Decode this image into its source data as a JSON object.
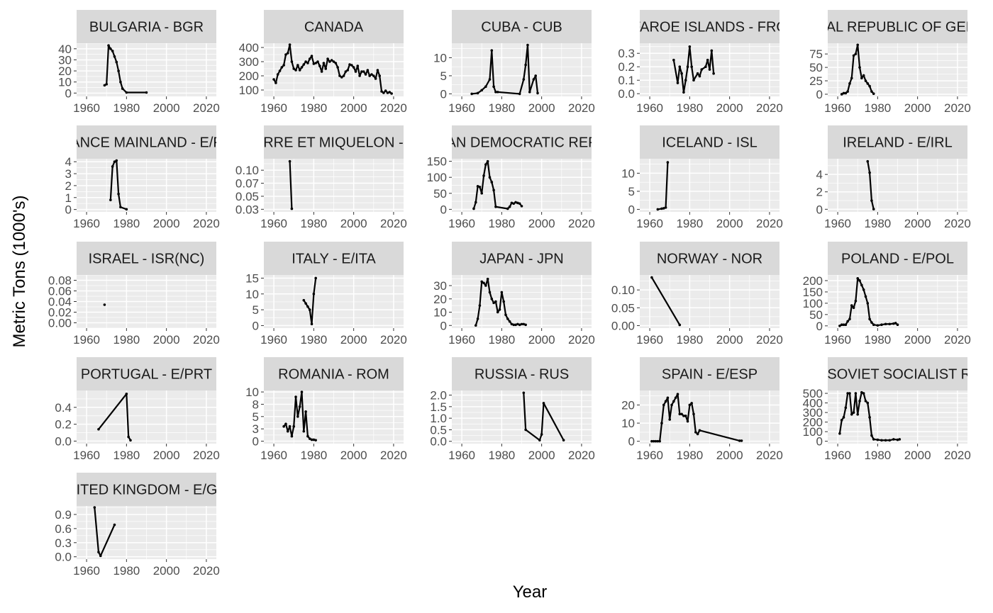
{
  "chart_data": {
    "type": "line",
    "layout": "facet_wrap",
    "xlabel": "Year",
    "ylabel": "Metric Tons (1000's)",
    "x_ticks": [
      1960,
      1980,
      2000,
      2020
    ],
    "xlim": [
      1955,
      2025
    ],
    "grid": true,
    "legend": "none",
    "colors": {
      "panel_bg": "#ebebeb",
      "strip_bg": "#d9d9d9",
      "grid": "#ffffff",
      "line": "#000000",
      "tick_text": "#4d4d4d",
      "strip_text": "#1a1a1a"
    },
    "panels": [
      {
        "title": "BULGARIA - BGR",
        "ylim": [
          -3,
          45
        ],
        "y_ticks": [
          0,
          10,
          20,
          30,
          40
        ],
        "x": [
          1969,
          1970,
          1971,
          1972,
          1973,
          1974,
          1975,
          1976,
          1977,
          1978,
          1980,
          1990
        ],
        "y": [
          7,
          8,
          43,
          40,
          38,
          33,
          28,
          20,
          10,
          4,
          0.5,
          0.5
        ]
      },
      {
        "title": "CANADA",
        "ylim": [
          55,
          430
        ],
        "y_ticks": [
          100,
          200,
          300,
          400
        ],
        "x": [
          1960,
          1961,
          1962,
          1963,
          1964,
          1965,
          1966,
          1967,
          1968,
          1969,
          1970,
          1971,
          1972,
          1973,
          1974,
          1975,
          1976,
          1977,
          1978,
          1979,
          1980,
          1981,
          1982,
          1983,
          1984,
          1985,
          1986,
          1987,
          1988,
          1989,
          1990,
          1991,
          1992,
          1993,
          1994,
          1995,
          1996,
          1997,
          1998,
          1999,
          2000,
          2001,
          2002,
          2003,
          2004,
          2005,
          2006,
          2007,
          2008,
          2009,
          2010,
          2011,
          2012,
          2013,
          2014,
          2015,
          2016,
          2017,
          2018,
          2019
        ],
        "y": [
          175,
          150,
          210,
          235,
          260,
          275,
          350,
          360,
          420,
          300,
          250,
          240,
          275,
          240,
          260,
          280,
          300,
          290,
          320,
          340,
          285,
          290,
          300,
          270,
          230,
          290,
          250,
          320,
          300,
          310,
          300,
          290,
          260,
          200,
          190,
          200,
          230,
          240,
          280,
          275,
          260,
          230,
          270,
          200,
          230,
          230,
          210,
          240,
          200,
          210,
          200,
          180,
          240,
          200,
          90,
          80,
          95,
          80,
          85,
          75
        ]
      },
      {
        "title": "CUBA - CUB",
        "ylim": [
          -0.7,
          14
        ],
        "y_ticks": [
          0,
          5,
          10
        ],
        "x": [
          1965,
          1968,
          1970,
          1972,
          1974,
          1975,
          1976,
          1977,
          1978,
          1989,
          1991,
          1992,
          1993,
          1994,
          1996,
          1997,
          1998
        ],
        "y": [
          0,
          0.2,
          1,
          2,
          4,
          12,
          2,
          0.5,
          0.5,
          0,
          4,
          8,
          13.5,
          0.5,
          4,
          5,
          0.2
        ]
      },
      {
        "title": "FAROE ISLANDS - FRO",
        "ylim": [
          -0.02,
          0.375
        ],
        "y_ticks": [
          0.0,
          0.1,
          0.2,
          0.3
        ],
        "x": [
          1972,
          1974,
          1975,
          1976,
          1977,
          1978,
          1979,
          1980,
          1981,
          1982,
          1984,
          1985,
          1986,
          1988,
          1989,
          1990,
          1991,
          1992
        ],
        "y": [
          0.25,
          0.08,
          0.2,
          0.15,
          0.01,
          0.1,
          0.2,
          0.35,
          0.2,
          0.1,
          0.15,
          0.13,
          0.18,
          0.2,
          0.25,
          0.18,
          0.32,
          0.15
        ]
      },
      {
        "title": "FEDERAL REPUBLIC OF GERMANY",
        "ylim": [
          -4,
          95
        ],
        "y_ticks": [
          0,
          25,
          50,
          75
        ],
        "x": [
          1962,
          1963,
          1964,
          1965,
          1966,
          1967,
          1968,
          1969,
          1970,
          1971,
          1972,
          1973,
          1974,
          1975,
          1976,
          1977,
          1978
        ],
        "y": [
          0,
          2,
          2,
          5,
          20,
          30,
          72,
          75,
          92,
          50,
          30,
          35,
          25,
          20,
          15,
          5,
          1
        ]
      },
      {
        "title": "FRANCE MAINLAND - E/FRA",
        "ylim": [
          -0.2,
          4.25
        ],
        "y_ticks": [
          0,
          1,
          2,
          3,
          4
        ],
        "x": [
          1972,
          1973,
          1974,
          1975,
          1976,
          1977,
          1980
        ],
        "y": [
          0.8,
          3.6,
          4.0,
          4.1,
          1.3,
          0.2,
          0.02
        ]
      },
      {
        "title": "ST. PIERRE ET MIQUELON - E/SPM",
        "ylim": [
          0.02,
          0.122
        ],
        "y_ticks": [
          0.025,
          0.05,
          0.075,
          0.1
        ],
        "x": [
          1968,
          1969
        ],
        "y": [
          0.117,
          0.026
        ]
      },
      {
        "title": "GERMAN DEMOCRATIC REPUBLIC",
        "ylim": [
          -8,
          158
        ],
        "y_ticks": [
          0,
          50,
          100,
          150
        ],
        "x": [
          1966,
          1967,
          1968,
          1969,
          1970,
          1971,
          1972,
          1973,
          1974,
          1975,
          1976,
          1977,
          1983,
          1984,
          1985,
          1986,
          1987,
          1988,
          1989,
          1990
        ],
        "y": [
          2,
          22,
          72,
          70,
          50,
          105,
          140,
          150,
          100,
          85,
          60,
          8,
          2,
          8,
          20,
          18,
          22,
          20,
          18,
          10
        ]
      },
      {
        "title": "ICELAND - ISL",
        "ylim": [
          -0.7,
          14
        ],
        "y_ticks": [
          0,
          5,
          10
        ],
        "x": [
          1964,
          1966,
          1967,
          1968,
          1969
        ],
        "y": [
          0,
          0.2,
          0.3,
          0.5,
          13
        ]
      },
      {
        "title": "IRELAND - E/IRL",
        "ylim": [
          -0.3,
          5.8
        ],
        "y_ticks": [
          0,
          2,
          4
        ],
        "x": [
          1975,
          1976,
          1977,
          1978
        ],
        "y": [
          5.5,
          4.2,
          1.0,
          0.02
        ]
      },
      {
        "title": "ISRAEL - ISR(NC)",
        "ylim": [
          -0.01,
          0.09
        ],
        "y_ticks": [
          0.0,
          0.02,
          0.04,
          0.06,
          0.08
        ],
        "x": [
          1969
        ],
        "y": [
          0.034
        ]
      },
      {
        "title": "ITALY - E/ITA",
        "ylim": [
          -0.8,
          16
        ],
        "y_ticks": [
          0,
          5,
          10,
          15
        ],
        "x": [
          1975,
          1976,
          1977,
          1978,
          1979,
          1980,
          1981
        ],
        "y": [
          8,
          7,
          6,
          5,
          0.5,
          10,
          15
        ]
      },
      {
        "title": "JAPAN - JPN",
        "ylim": [
          -2,
          38
        ],
        "y_ticks": [
          0,
          10,
          20,
          30
        ],
        "x": [
          1967,
          1968,
          1969,
          1970,
          1971,
          1972,
          1973,
          1974,
          1975,
          1976,
          1977,
          1978,
          1979,
          1980,
          1981,
          1982,
          1983,
          1984,
          1985,
          1986,
          1987,
          1988,
          1989,
          1990,
          1991,
          1992
        ],
        "y": [
          0,
          5,
          15,
          33,
          32,
          30,
          35,
          25,
          20,
          17,
          18,
          10,
          12,
          25,
          18,
          8,
          5,
          3,
          1,
          0.5,
          0.5,
          1,
          0.5,
          1,
          1,
          0.5
        ]
      },
      {
        "title": "NORWAY - NOR",
        "ylim": [
          -0.007,
          0.142
        ],
        "y_ticks": [
          0.0,
          0.05,
          0.1
        ],
        "x": [
          1961,
          1975
        ],
        "y": [
          0.135,
          0.002
        ]
      },
      {
        "title": "POLAND - E/POL",
        "ylim": [
          -10,
          225
        ],
        "y_ticks": [
          0,
          50,
          100,
          150,
          200
        ],
        "x": [
          1961,
          1962,
          1963,
          1964,
          1965,
          1966,
          1967,
          1968,
          1969,
          1970,
          1971,
          1972,
          1973,
          1974,
          1975,
          1976,
          1977,
          1978,
          1980,
          1982,
          1984,
          1986,
          1988,
          1989,
          1990
        ],
        "y": [
          0,
          5,
          5,
          5,
          20,
          30,
          90,
          80,
          110,
          210,
          200,
          180,
          160,
          130,
          100,
          30,
          15,
          5,
          2,
          5,
          8,
          8,
          10,
          12,
          5
        ]
      },
      {
        "title": "PORTUGAL - E/PRT",
        "ylim": [
          -0.03,
          0.6
        ],
        "y_ticks": [
          0.0,
          0.2,
          0.4
        ],
        "x": [
          1966,
          1980,
          1981,
          1982
        ],
        "y": [
          0.14,
          0.56,
          0.05,
          0.01
        ]
      },
      {
        "title": "ROMANIA - ROM",
        "ylim": [
          -0.5,
          10.3
        ],
        "y_ticks": [
          0.0,
          2.5,
          5.0,
          7.5,
          10.0
        ],
        "x": [
          1965,
          1966,
          1967,
          1968,
          1969,
          1970,
          1971,
          1972,
          1973,
          1974,
          1975,
          1976,
          1977,
          1978,
          1979,
          1980,
          1981
        ],
        "y": [
          3,
          3.5,
          2,
          3,
          1,
          3,
          9,
          5,
          7,
          10,
          2,
          6,
          1,
          0.5,
          0.3,
          0.3,
          0.2
        ]
      },
      {
        "title": "RUSSIA - RUS",
        "ylim": [
          -0.1,
          2.2
        ],
        "y_ticks": [
          0.0,
          0.5,
          1.0,
          1.5,
          2.0
        ],
        "x": [
          1991,
          1992,
          1999,
          2000,
          2001,
          2011
        ],
        "y": [
          2.1,
          0.5,
          0.05,
          0.3,
          1.65,
          0.05
        ]
      },
      {
        "title": "SPAIN - E/ESP",
        "ylim": [
          -1.3,
          28
        ],
        "y_ticks": [
          0,
          10,
          20
        ],
        "x": [
          1961,
          1962,
          1963,
          1964,
          1965,
          1966,
          1967,
          1968,
          1969,
          1970,
          1971,
          1972,
          1973,
          1974,
          1975,
          1976,
          1977,
          1978,
          1979,
          1980,
          1981,
          1982,
          1983,
          1984,
          1985,
          2005,
          2006
        ],
        "y": [
          0,
          0,
          0,
          0,
          0,
          10,
          20,
          22,
          24,
          12,
          20,
          22,
          24,
          26,
          15,
          15,
          14,
          14,
          11,
          20,
          21,
          15,
          5,
          4,
          6,
          0.3,
          0.3
        ]
      },
      {
        "title": "UNION OF SOVIET SOCIALIST REPUBLICS",
        "ylim": [
          -25,
          530
        ],
        "y_ticks": [
          0,
          100,
          200,
          300,
          400,
          500
        ],
        "x": [
          1961,
          1962,
          1963,
          1964,
          1965,
          1966,
          1967,
          1968,
          1969,
          1970,
          1971,
          1972,
          1973,
          1974,
          1975,
          1976,
          1977,
          1978,
          1980,
          1982,
          1984,
          1986,
          1988,
          1990,
          1991
        ],
        "y": [
          80,
          220,
          250,
          350,
          500,
          500,
          280,
          300,
          500,
          280,
          420,
          510,
          500,
          420,
          400,
          250,
          60,
          20,
          15,
          10,
          10,
          10,
          20,
          15,
          20
        ]
      },
      {
        "title": "UNITED KINGDOM - E/GBR",
        "ylim": [
          -0.05,
          1.08
        ],
        "y_ticks": [
          0.0,
          0.3,
          0.6,
          0.9
        ],
        "x": [
          1964,
          1966,
          1967,
          1974
        ],
        "y": [
          1.05,
          0.1,
          0.02,
          0.68
        ]
      }
    ]
  }
}
